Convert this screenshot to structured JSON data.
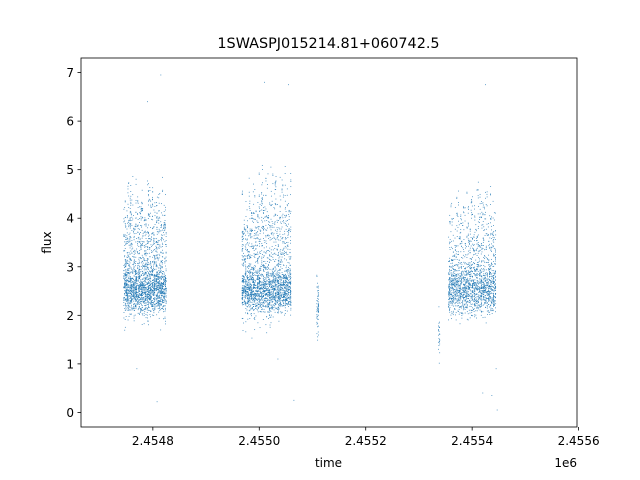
{
  "chart_data": {
    "type": "scatter",
    "title": "1SWASPJ015214.81+060742.5",
    "xlabel": "time",
    "ylabel": "flux",
    "x_offset_label": "1e6",
    "xlim": [
      2454665,
      2455597
    ],
    "ylim": [
      -0.3,
      7.3
    ],
    "xticks": [
      2454800,
      2455000,
      2455200,
      2455400,
      2455600
    ],
    "xtick_labels": [
      "2.4548",
      "2.4550",
      "2.4552",
      "2.4554",
      "2.4556"
    ],
    "yticks": [
      0,
      1,
      2,
      3,
      4,
      5,
      6,
      7
    ],
    "ytick_labels": [
      "0",
      "1",
      "2",
      "3",
      "4",
      "5",
      "6",
      "7"
    ],
    "grid": false,
    "marker_color": "#1f77b4",
    "series": [
      {
        "segments": [
          {
            "x_start": 2454745,
            "x_end": 2454825,
            "center_flux": 2.8,
            "spread_low": 0.7,
            "spread_high": 2.1,
            "n_points": 2200
          },
          {
            "x_start": 2454967,
            "x_end": 2455060,
            "center_flux": 2.8,
            "spread_low": 0.9,
            "spread_high": 2.4,
            "n_points": 2300
          },
          {
            "x_start": 2455108,
            "x_end": 2455112,
            "center_flux": 2.3,
            "spread_low": 0.5,
            "spread_high": 0.6,
            "n_points": 60
          },
          {
            "x_start": 2455336,
            "x_end": 2455340,
            "center_flux": 1.8,
            "spread_low": 0.3,
            "spread_high": 0.3,
            "n_points": 25
          },
          {
            "x_start": 2455355,
            "x_end": 2455445,
            "center_flux": 2.8,
            "spread_low": 0.8,
            "spread_high": 2.0,
            "n_points": 1800
          }
        ],
        "outliers": [
          {
            "x": 2454815,
            "y": 6.95
          },
          {
            "x": 2454790,
            "y": 6.4
          },
          {
            "x": 2454808,
            "y": 0.22
          },
          {
            "x": 2454770,
            "y": 0.9
          },
          {
            "x": 2455010,
            "y": 6.8
          },
          {
            "x": 2455055,
            "y": 6.75
          },
          {
            "x": 2455065,
            "y": 0.25
          },
          {
            "x": 2455035,
            "y": 1.1
          },
          {
            "x": 2455425,
            "y": 6.75
          },
          {
            "x": 2455420,
            "y": 0.4
          },
          {
            "x": 2455437,
            "y": 0.35
          },
          {
            "x": 2455447,
            "y": 0.05
          },
          {
            "x": 2455445,
            "y": 0.9
          }
        ]
      }
    ]
  }
}
